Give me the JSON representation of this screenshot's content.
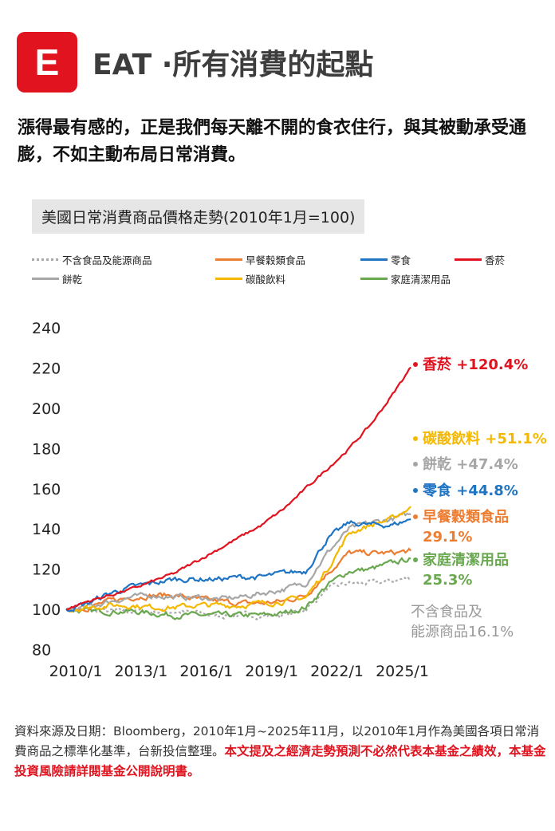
{
  "header": {
    "logo_letter": "E",
    "title": "EAT ·所有消費的起點"
  },
  "intro": "漲得最有感的，正是我們每天離不開的食衣住行，與其被動承受通膨，不如主動布局日常消費。",
  "chart_data": {
    "type": "line",
    "title": "美國日常消費商品價格走勢(2010年1月=100)",
    "x_ticks": [
      "2010/1",
      "2013/1",
      "2016/1",
      "2019/1",
      "2022/1",
      "2025/1"
    ],
    "y_ticks": [
      80,
      100,
      120,
      140,
      160,
      180,
      200,
      220,
      240
    ],
    "ylim": [
      80,
      240
    ],
    "xlim": [
      "2010/1",
      "2025/11"
    ],
    "grid": false,
    "legend_placement": "top",
    "x": [
      "2010/1",
      "2011/1",
      "2012/1",
      "2013/1",
      "2014/1",
      "2015/1",
      "2016/1",
      "2017/1",
      "2018/1",
      "2019/1",
      "2020/1",
      "2021/1",
      "2022/1",
      "2023/1",
      "2024/1",
      "2025/1",
      "2025/11"
    ],
    "series": [
      {
        "name": "不含食品及能源商品",
        "color": "#aaaaaa",
        "dashed": true,
        "values": [
          100,
          99,
          99,
          99,
          99,
          99,
          98,
          97,
          97,
          97,
          97,
          100,
          110,
          113,
          113,
          114,
          116.1
        ],
        "end_label": "不含食品及|能源商品16.1%"
      },
      {
        "name": "早餐穀類食品",
        "color": "#ed7d31",
        "values": [
          100,
          101,
          104,
          106,
          107,
          107,
          105,
          104,
          103,
          103,
          104,
          107,
          118,
          128,
          128,
          128,
          129.1
        ],
        "end_label": "早餐穀類食品|29.1%"
      },
      {
        "name": "零食",
        "color": "#1f74c4",
        "values": [
          100,
          103,
          108,
          111,
          113,
          115,
          115,
          115,
          116,
          116,
          118,
          119,
          135,
          143,
          142,
          142,
          144.8
        ],
        "end_label": "零食 +44.8%"
      },
      {
        "name": "香菸",
        "color": "#e0131f",
        "values": [
          100,
          104,
          107,
          110,
          114,
          118,
          124,
          130,
          136,
          142,
          150,
          160,
          170,
          180,
          192,
          207,
          220.4
        ],
        "end_label": "香菸 +120.4%"
      },
      {
        "name": "餅乾",
        "color": "#a6a6a6",
        "values": [
          100,
          101,
          104,
          106,
          107,
          106,
          106,
          105,
          106,
          108,
          110,
          113,
          128,
          140,
          143,
          145,
          147.4
        ],
        "end_label": "餅乾 +47.4%"
      },
      {
        "name": "碳酸飲料",
        "color": "#f5b800",
        "values": [
          100,
          101,
          102,
          102,
          101,
          101,
          102,
          102,
          102,
          103,
          104,
          106,
          120,
          138,
          142,
          145,
          151.1
        ],
        "end_label": "碳酸飲料 +51.1%"
      },
      {
        "name": "家庭清潔用品",
        "color": "#6aa84f",
        "values": [
          100,
          99,
          99,
          99,
          98,
          97,
          97,
          97,
          97,
          97,
          98,
          101,
          112,
          119,
          120,
          123,
          125.3
        ],
        "end_label": "家庭清潔用品|25.3%"
      }
    ]
  },
  "footer": {
    "source": "資料來源及日期：Bloomberg，2010年1月~2025年11月，以2010年1月作為美國各項日常消費商品之標準化基準，台新投信整理。",
    "disclaimer": "本文提及之經濟走勢預測不必然代表本基金之績效，本基金投資風險請詳閱基金公開說明書。"
  }
}
